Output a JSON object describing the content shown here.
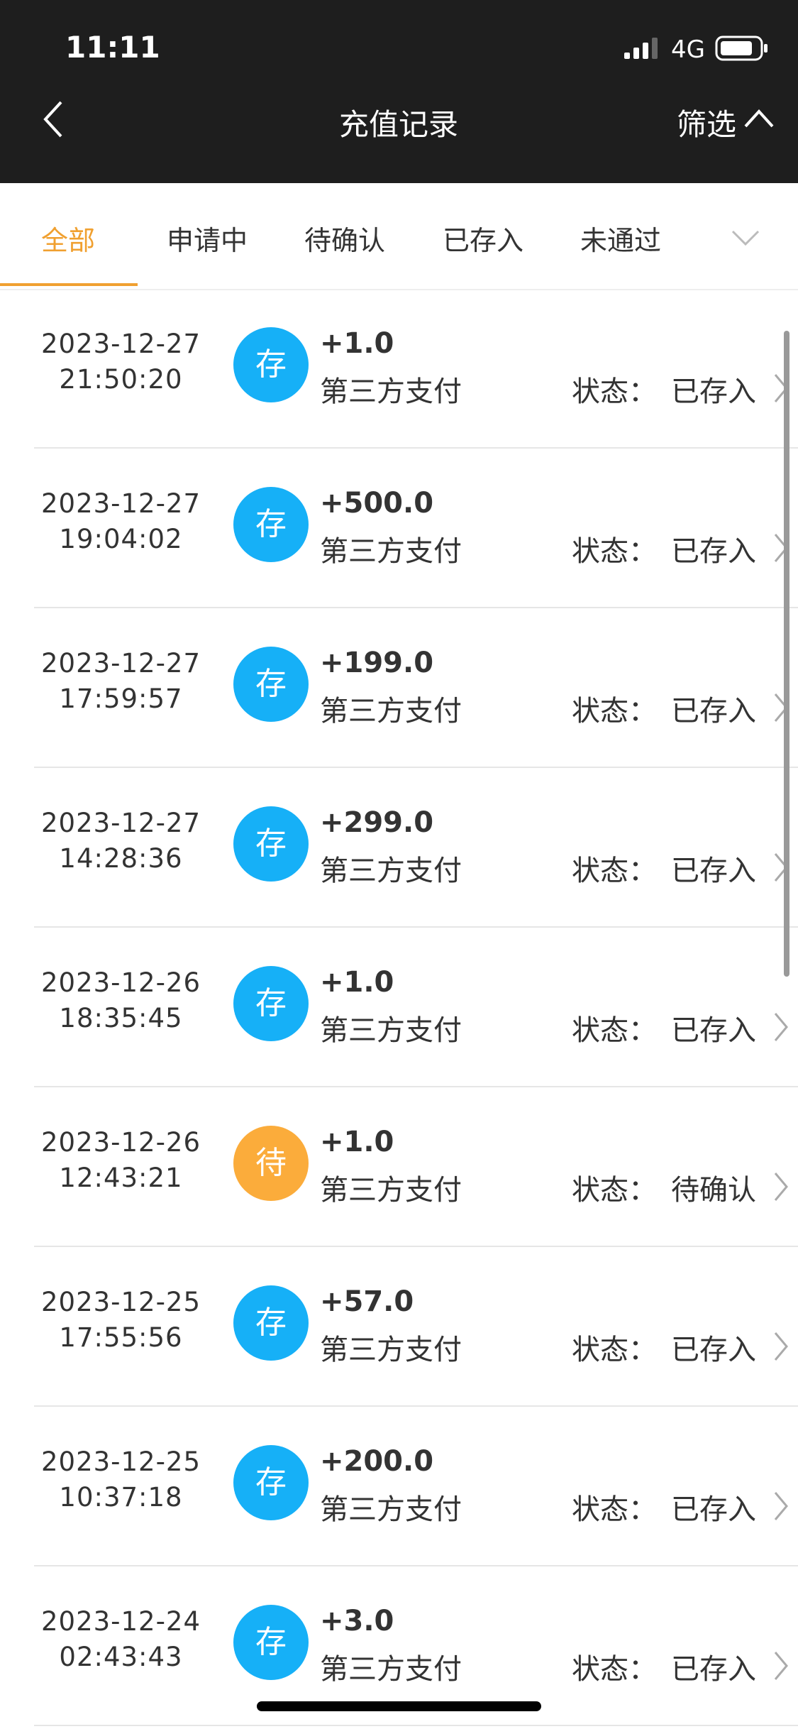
{
  "status_bar": {
    "time": "11:11",
    "network": "4G"
  },
  "header": {
    "title": "充值记录",
    "filter": "筛选"
  },
  "tabs": [
    "全部",
    "申请中",
    "待确认",
    "已存入",
    "未通过"
  ],
  "status_label": "状态：",
  "records": [
    {
      "date": "2023-12-27",
      "time": "21:50:20",
      "icon": "存",
      "icon_color": "#16b0f7",
      "amount": "+1.0",
      "method": "第三方支付",
      "status": "已存入"
    },
    {
      "date": "2023-12-27",
      "time": "19:04:02",
      "icon": "存",
      "icon_color": "#16b0f7",
      "amount": "+500.0",
      "method": "第三方支付",
      "status": "已存入"
    },
    {
      "date": "2023-12-27",
      "time": "17:59:57",
      "icon": "存",
      "icon_color": "#16b0f7",
      "amount": "+199.0",
      "method": "第三方支付",
      "status": "已存入"
    },
    {
      "date": "2023-12-27",
      "time": "14:28:36",
      "icon": "存",
      "icon_color": "#16b0f7",
      "amount": "+299.0",
      "method": "第三方支付",
      "status": "已存入"
    },
    {
      "date": "2023-12-26",
      "time": "18:35:45",
      "icon": "存",
      "icon_color": "#16b0f7",
      "amount": "+1.0",
      "method": "第三方支付",
      "status": "已存入"
    },
    {
      "date": "2023-12-26",
      "time": "12:43:21",
      "icon": "待",
      "icon_color": "#fbac3b",
      "amount": "+1.0",
      "method": "第三方支付",
      "status": "待确认"
    },
    {
      "date": "2023-12-25",
      "time": "17:55:56",
      "icon": "存",
      "icon_color": "#16b0f7",
      "amount": "+57.0",
      "method": "第三方支付",
      "status": "已存入"
    },
    {
      "date": "2023-12-25",
      "time": "10:37:18",
      "icon": "存",
      "icon_color": "#16b0f7",
      "amount": "+200.0",
      "method": "第三方支付",
      "status": "已存入"
    },
    {
      "date": "2023-12-24",
      "time": "02:43:43",
      "icon": "存",
      "icon_color": "#16b0f7",
      "amount": "+3.0",
      "method": "第三方支付",
      "status": "已存入"
    }
  ]
}
